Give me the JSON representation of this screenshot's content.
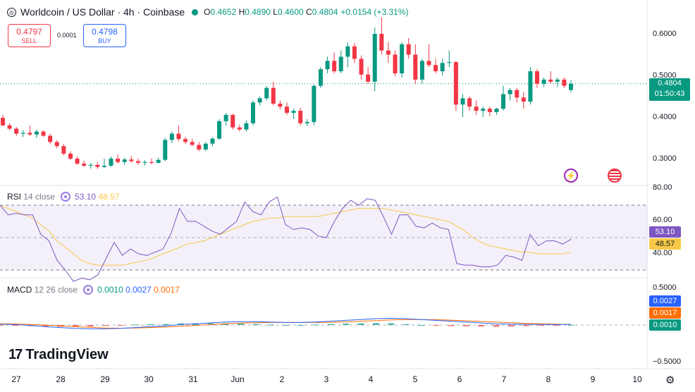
{
  "header": {
    "coin_glyph": "◎",
    "title": "Worldcoin / US Dollar · 4h · Coinbase",
    "o_label": "O",
    "o": "0.4652",
    "h_label": "H",
    "h": "0.4890",
    "l_label": "L",
    "l": "0.4600",
    "c_label": "C",
    "c": "0.4804",
    "change": "+0.0154 (+3.31%)"
  },
  "trade": {
    "sell_price": "0.4797",
    "sell_label": "SELL",
    "buy_price": "0.4798",
    "buy_label": "BUY",
    "spread": "0.0001"
  },
  "price_axis": {
    "ticks": [
      "0.6000",
      "0.5000",
      "0.4000",
      "0.3000"
    ],
    "current_price": "0.4804",
    "countdown": "01:50:43"
  },
  "rsi": {
    "label": "RSI",
    "params": "14 close",
    "value": "53.10",
    "ma_value": "48.57",
    "ticks": [
      "80.00",
      "60.00",
      "40.00"
    ],
    "upper_band": 70,
    "lower_band": 30,
    "range": [
      20,
      80
    ]
  },
  "macd": {
    "label": "MACD",
    "params": "12 26 close",
    "hist": "0.0010",
    "macd": "0.0027",
    "signal": "0.0017",
    "ticks": [
      "0.5000",
      "−0.5000"
    ]
  },
  "x_axis": {
    "labels": [
      "27",
      "28",
      "29",
      "30",
      "31",
      "Jun",
      "2",
      "3",
      "4",
      "5",
      "6",
      "7",
      "8",
      "9",
      "10"
    ]
  },
  "branding": {
    "name": "TradingView",
    "mark": "17"
  },
  "icons": {
    "flash": "flash-icon",
    "flag": "us-flag-icon",
    "settings": "settings-gear-icon"
  },
  "colors": {
    "up": "#089981",
    "down": "#f23645",
    "rsi": "#7e57c2",
    "rsi_ma": "#f7c948",
    "macd": "#2962ff",
    "signal": "#ff6d00"
  },
  "chart_data": {
    "type": "candlestick",
    "price_range": [
      0.25,
      0.65
    ],
    "candles": [
      [
        0.398,
        0.405,
        0.378,
        0.38
      ],
      [
        0.38,
        0.385,
        0.368,
        0.372
      ],
      [
        0.372,
        0.376,
        0.355,
        0.36
      ],
      [
        0.36,
        0.368,
        0.352,
        0.362
      ],
      [
        0.362,
        0.38,
        0.355,
        0.358
      ],
      [
        0.358,
        0.37,
        0.35,
        0.365
      ],
      [
        0.365,
        0.368,
        0.352,
        0.355
      ],
      [
        0.355,
        0.36,
        0.335,
        0.34
      ],
      [
        0.34,
        0.345,
        0.325,
        0.33
      ],
      [
        0.33,
        0.335,
        0.308,
        0.312
      ],
      [
        0.312,
        0.318,
        0.296,
        0.3
      ],
      [
        0.3,
        0.305,
        0.285,
        0.288
      ],
      [
        0.288,
        0.295,
        0.28,
        0.283
      ],
      [
        0.283,
        0.29,
        0.276,
        0.285
      ],
      [
        0.285,
        0.292,
        0.275,
        0.28
      ],
      [
        0.28,
        0.3,
        0.278,
        0.283
      ],
      [
        0.283,
        0.305,
        0.28,
        0.3
      ],
      [
        0.3,
        0.31,
        0.288,
        0.292
      ],
      [
        0.292,
        0.302,
        0.285,
        0.298
      ],
      [
        0.298,
        0.306,
        0.29,
        0.294
      ],
      [
        0.294,
        0.3,
        0.285,
        0.29
      ],
      [
        0.29,
        0.296,
        0.283,
        0.292
      ],
      [
        0.292,
        0.3,
        0.286,
        0.29
      ],
      [
        0.29,
        0.302,
        0.288,
        0.297
      ],
      [
        0.297,
        0.35,
        0.294,
        0.345
      ],
      [
        0.345,
        0.365,
        0.338,
        0.36
      ],
      [
        0.36,
        0.38,
        0.342,
        0.347
      ],
      [
        0.347,
        0.352,
        0.335,
        0.34
      ],
      [
        0.34,
        0.348,
        0.33,
        0.333
      ],
      [
        0.333,
        0.34,
        0.318,
        0.322
      ],
      [
        0.322,
        0.34,
        0.318,
        0.336
      ],
      [
        0.336,
        0.352,
        0.33,
        0.348
      ],
      [
        0.348,
        0.395,
        0.345,
        0.39
      ],
      [
        0.39,
        0.41,
        0.38,
        0.405
      ],
      [
        0.405,
        0.408,
        0.37,
        0.375
      ],
      [
        0.375,
        0.382,
        0.365,
        0.37
      ],
      [
        0.37,
        0.392,
        0.365,
        0.385
      ],
      [
        0.385,
        0.44,
        0.38,
        0.435
      ],
      [
        0.435,
        0.45,
        0.428,
        0.445
      ],
      [
        0.445,
        0.475,
        0.44,
        0.47
      ],
      [
        0.47,
        0.485,
        0.428,
        0.432
      ],
      [
        0.432,
        0.44,
        0.418,
        0.425
      ],
      [
        0.425,
        0.435,
        0.405,
        0.41
      ],
      [
        0.41,
        0.42,
        0.395,
        0.415
      ],
      [
        0.415,
        0.422,
        0.38,
        0.385
      ],
      [
        0.385,
        0.395,
        0.378,
        0.388
      ],
      [
        0.388,
        0.478,
        0.38,
        0.475
      ],
      [
        0.475,
        0.52,
        0.47,
        0.515
      ],
      [
        0.515,
        0.545,
        0.505,
        0.535
      ],
      [
        0.535,
        0.555,
        0.505,
        0.51
      ],
      [
        0.51,
        0.56,
        0.505,
        0.545
      ],
      [
        0.545,
        0.58,
        0.52,
        0.57
      ],
      [
        0.57,
        0.578,
        0.53,
        0.54
      ],
      [
        0.54,
        0.548,
        0.49,
        0.502
      ],
      [
        0.502,
        0.52,
        0.48,
        0.485
      ],
      [
        0.485,
        0.615,
        0.462,
        0.6
      ],
      [
        0.6,
        0.64,
        0.55,
        0.56
      ],
      [
        0.56,
        0.58,
        0.53,
        0.55
      ],
      [
        0.55,
        0.56,
        0.498,
        0.505
      ],
      [
        0.505,
        0.58,
        0.495,
        0.575
      ],
      [
        0.575,
        0.59,
        0.54,
        0.55
      ],
      [
        0.55,
        0.575,
        0.48,
        0.49
      ],
      [
        0.49,
        0.54,
        0.48,
        0.535
      ],
      [
        0.535,
        0.575,
        0.52,
        0.525
      ],
      [
        0.525,
        0.54,
        0.505,
        0.51
      ],
      [
        0.51,
        0.54,
        0.5,
        0.53
      ],
      [
        0.53,
        0.56,
        0.52,
        0.532
      ],
      [
        0.532,
        0.535,
        0.415,
        0.43
      ],
      [
        0.43,
        0.455,
        0.4,
        0.445
      ],
      [
        0.445,
        0.45,
        0.415,
        0.425
      ],
      [
        0.425,
        0.44,
        0.405,
        0.415
      ],
      [
        0.415,
        0.425,
        0.4,
        0.42
      ],
      [
        0.42,
        0.425,
        0.402,
        0.412
      ],
      [
        0.412,
        0.422,
        0.405,
        0.42
      ],
      [
        0.42,
        0.475,
        0.415,
        0.455
      ],
      [
        0.455,
        0.47,
        0.44,
        0.465
      ],
      [
        0.465,
        0.47,
        0.435,
        0.447
      ],
      [
        0.447,
        0.46,
        0.42,
        0.437
      ],
      [
        0.437,
        0.52,
        0.43,
        0.51
      ],
      [
        0.51,
        0.515,
        0.47,
        0.48
      ],
      [
        0.48,
        0.495,
        0.472,
        0.49
      ],
      [
        0.49,
        0.51,
        0.48,
        0.485
      ],
      [
        0.485,
        0.495,
        0.472,
        0.49
      ],
      [
        0.49,
        0.495,
        0.47,
        0.475
      ],
      [
        0.465,
        0.489,
        0.46,
        0.48
      ]
    ],
    "rsi_values": [
      70,
      64,
      65,
      64,
      64,
      52,
      48,
      36,
      30,
      23,
      25,
      24,
      27,
      37,
      47,
      39,
      43,
      40,
      39,
      41,
      43,
      53,
      68,
      60,
      60,
      57,
      54,
      52,
      56,
      60,
      72,
      66,
      64,
      72,
      75,
      58,
      55,
      56,
      55,
      51,
      50,
      60,
      68,
      73,
      70,
      74,
      73,
      63,
      52,
      64,
      64,
      57,
      56,
      59,
      56,
      55,
      34,
      33,
      33,
      32,
      32,
      33,
      39,
      38,
      36,
      52,
      45,
      48,
      48,
      46,
      49
    ],
    "rsi_ma_values": [
      70,
      68,
      66,
      64,
      62,
      58,
      54,
      48,
      44,
      40,
      36,
      34,
      33,
      33,
      33,
      33,
      34,
      35,
      36,
      38,
      40,
      42,
      44,
      46,
      47,
      48,
      50,
      52,
      54,
      56,
      58,
      60,
      61,
      62,
      62,
      63,
      63,
      63,
      63,
      63,
      64,
      65,
      66,
      67,
      68,
      68,
      68,
      68,
      67,
      66,
      65,
      64,
      63,
      62,
      61,
      60,
      57,
      54,
      50,
      47,
      45,
      44,
      43,
      42,
      41,
      41,
      40,
      40,
      40,
      40,
      41
    ],
    "macd_values": [
      0.004,
      0.002,
      -0.002,
      -0.008,
      -0.012,
      -0.016,
      -0.018,
      -0.018,
      -0.016,
      -0.012,
      -0.008,
      -0.004,
      0.002,
      0.006,
      0.01,
      0.014,
      0.016,
      0.016,
      0.014,
      0.012,
      0.012,
      0.014,
      0.018,
      0.022,
      0.026,
      0.03,
      0.032,
      0.03,
      0.026,
      0.022,
      0.018,
      0.014,
      0.01,
      0.006,
      0.004,
      0.003,
      0.003,
      0.002,
      0.003
    ],
    "signal_values": [
      0.006,
      0.005,
      0.003,
      0.0,
      -0.004,
      -0.008,
      -0.011,
      -0.014,
      -0.015,
      -0.014,
      -0.012,
      -0.009,
      -0.006,
      -0.002,
      0.002,
      0.006,
      0.009,
      0.011,
      0.012,
      0.012,
      0.012,
      0.012,
      0.013,
      0.015,
      0.018,
      0.021,
      0.024,
      0.026,
      0.026,
      0.025,
      0.023,
      0.02,
      0.017,
      0.014,
      0.011,
      0.008,
      0.006,
      0.004,
      0.002
    ]
  }
}
